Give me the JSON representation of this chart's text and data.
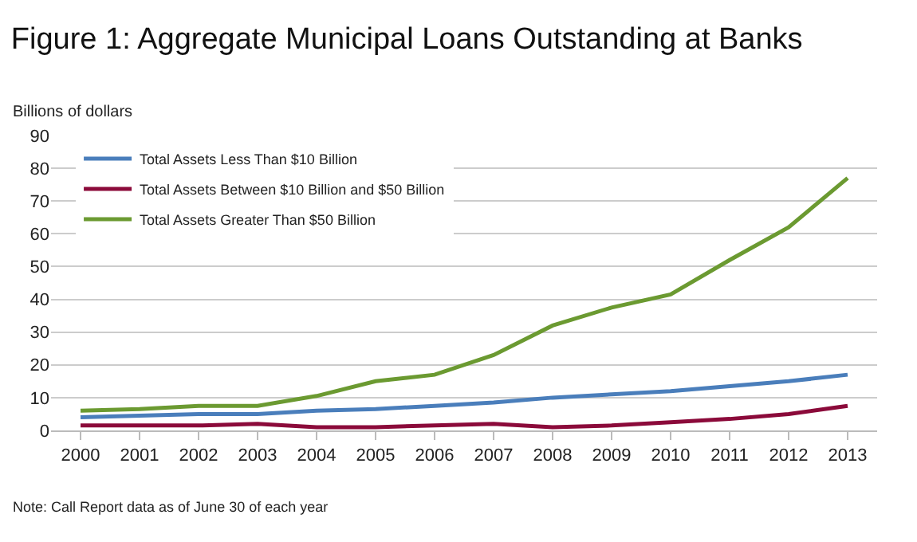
{
  "chart_data": {
    "type": "line",
    "title": "Figure 1: Aggregate Municipal Loans Outstanding at Banks",
    "ylabel": "Billions of dollars",
    "categories": [
      "2000",
      "2001",
      "2002",
      "2003",
      "2004",
      "2005",
      "2006",
      "2007",
      "2008",
      "2009",
      "2010",
      "2011",
      "2012",
      "2013"
    ],
    "series": [
      {
        "name": "Total Assets Less Than $10 Billion",
        "color": "#4a7ebb",
        "values": [
          4,
          4.5,
          5,
          5,
          6,
          6.5,
          7.5,
          8.5,
          10,
          11,
          12,
          13.5,
          15,
          17
        ]
      },
      {
        "name": "Total Assets Between $10 Billion and $50 Billion",
        "color": "#8b0a3a",
        "values": [
          1.5,
          1.5,
          1.5,
          2,
          1,
          1,
          1.5,
          2,
          1,
          1.5,
          2.5,
          3.5,
          5,
          7.5
        ]
      },
      {
        "name": "Total Assets Greater Than $50 Billion",
        "color": "#6b9a31",
        "values": [
          6,
          6.5,
          7.5,
          7.5,
          10.5,
          15,
          17,
          23,
          32,
          37.5,
          41.5,
          52,
          62,
          77
        ]
      }
    ],
    "ylim": [
      0,
      90
    ],
    "yticks": [
      0,
      10,
      20,
      30,
      40,
      50,
      60,
      70,
      80,
      90
    ],
    "grid": "y",
    "legend": "top left",
    "marker": "none",
    "line_style": "solid",
    "annotations": [
      "Note: Call Report data as of June 30 of each year"
    ]
  }
}
